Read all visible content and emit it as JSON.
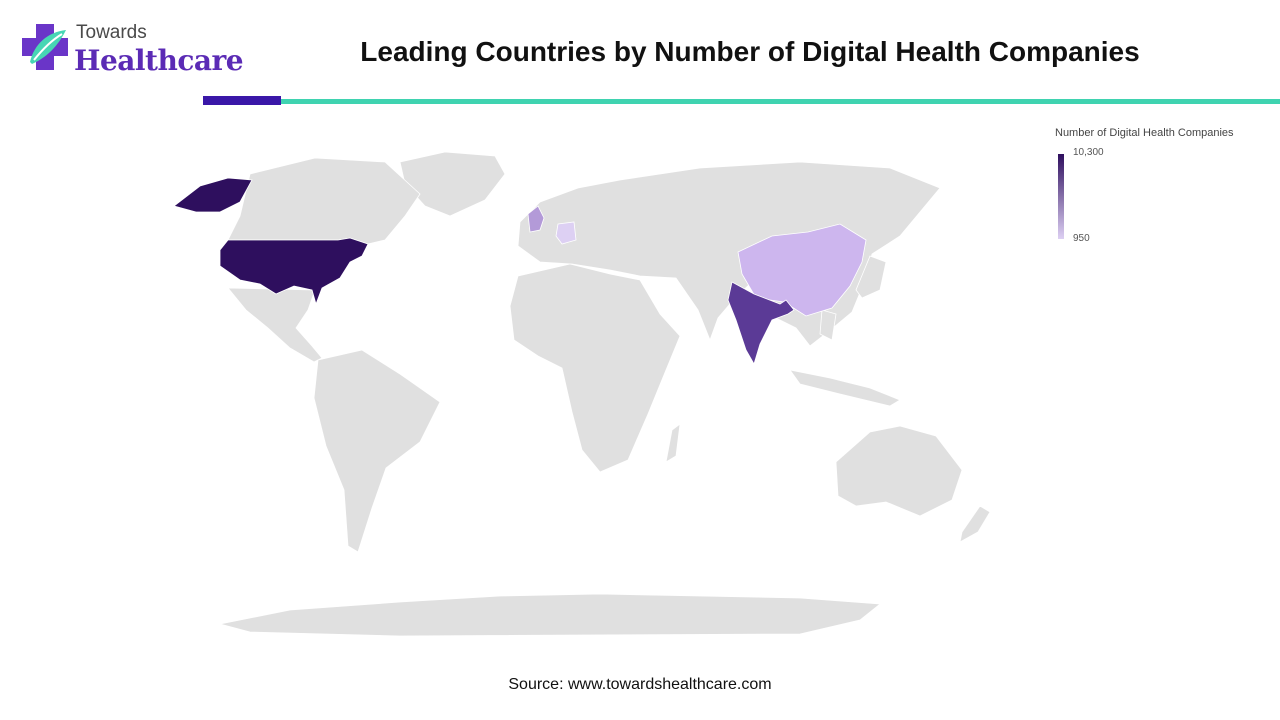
{
  "logo": {
    "top": "Towards",
    "main": "Healthcare"
  },
  "title": "Leading Countries by Number of Digital Health Companies",
  "legend": {
    "title": "Number of Digital Health Companies",
    "max": "10,300",
    "min": "950"
  },
  "colors": {
    "land": "#e0e0e0",
    "usa": "#2e0f5e",
    "india": "#5b3a96",
    "china": "#cdb6ee",
    "uk": "#b39ad8",
    "germany": "#ddd0f3",
    "brand_purple": "#5b2bb5",
    "accent_teal": "#3fd3b0"
  },
  "source": "Source: www.towardshealthcare.com"
}
